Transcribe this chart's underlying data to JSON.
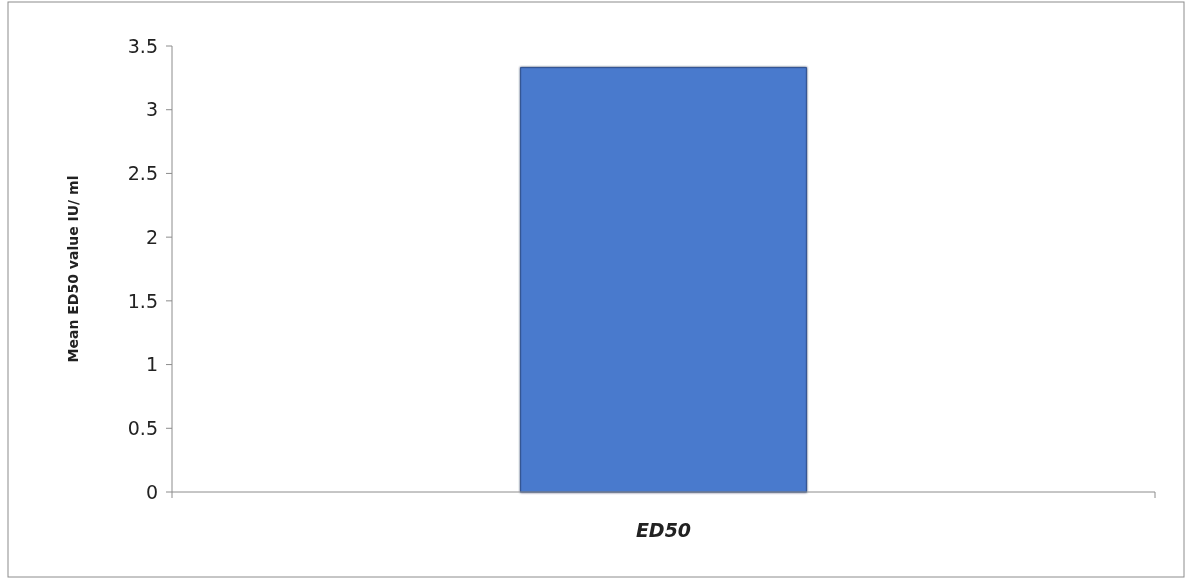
{
  "chart_data": {
    "type": "bar",
    "ylabel": "Mean ED50 value IU/ ml",
    "categories": [
      "ED50"
    ],
    "values": [
      3.33
    ],
    "color": "#4a7acd",
    "ylim": [
      0,
      3.5
    ],
    "yticks": [
      0,
      0.5,
      1,
      1.5,
      2,
      2.5,
      3,
      3.5
    ],
    "grid": false
  }
}
